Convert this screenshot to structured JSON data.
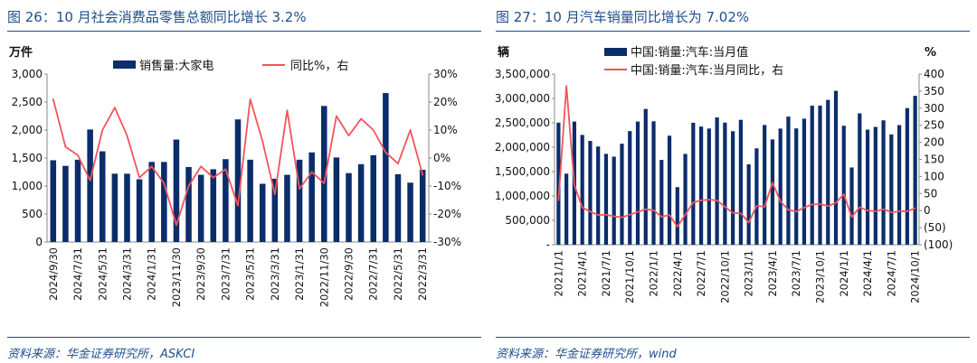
{
  "colors": {
    "title": "#1f4e8c",
    "bar": "#0b2d6b",
    "line": "#f2545b"
  },
  "chart_data": [
    {
      "type": "bar",
      "figure_title": "图 26：10 月社会消费品零售总额同比增长 3.2%",
      "source": "资料来源：华金证券研究所，ASKCI",
      "ylabel": "万件",
      "ylim": [
        0,
        3000
      ],
      "yticks": [
        "0",
        "500",
        "1,000",
        "1,500",
        "2,000",
        "2,500",
        "3,000"
      ],
      "y2lim": [
        -30,
        30
      ],
      "y2ticks": [
        "-30%",
        "-20%",
        "-10%",
        "0%",
        "10%",
        "20%",
        "30%"
      ],
      "legend": {
        "bar": "销售量:大家电",
        "line": "同比%，右"
      },
      "xtick_labels": [
        "2024/9/30",
        "2024/7/31",
        "2024/5/31",
        "2024/3/31",
        "2024/1/31",
        "2023/11/30",
        "2023/9/30",
        "2023/7/31",
        "2023/5/31",
        "2023/3/31",
        "2023/1/31",
        "2022/11/30",
        "2022/9/30",
        "2022/7/31",
        "2022/5/31",
        "2022/3/31"
      ],
      "series": [
        {
          "name": "销售量:大家电",
          "kind": "bar",
          "axis": "left",
          "values": [
            1460,
            1360,
            1470,
            2010,
            1620,
            1220,
            1220,
            1120,
            1430,
            1430,
            1830,
            1340,
            1200,
            1300,
            1480,
            2190,
            1470,
            1040,
            1130,
            1200,
            1470,
            1600,
            2430,
            1510,
            1230,
            1390,
            1550,
            2660,
            1210,
            1060,
            1290
          ]
        },
        {
          "name": "同比%，右",
          "kind": "line",
          "axis": "right",
          "values": [
            21,
            4,
            1,
            -8,
            10,
            18,
            8,
            -7,
            -3,
            -9,
            -24,
            -10,
            -3,
            -7,
            -4,
            -17,
            21,
            6,
            -13,
            17,
            -11,
            -5,
            -9,
            15,
            8,
            14,
            10,
            2,
            -2,
            10,
            -6
          ]
        }
      ]
    },
    {
      "type": "bar",
      "figure_title": "图 27：10 月汽车销量同比增长为 7.02%",
      "source": "资料来源：华金证券研究所，wind",
      "ylabel": "辆",
      "y2label": "%",
      "ylim": [
        0,
        3500000
      ],
      "yticks": [
        "-",
        "500,000",
        "1,000,000",
        "1,500,000",
        "2,000,000",
        "2,500,000",
        "3,000,000",
        "3,500,000"
      ],
      "y2lim": [
        -100,
        400
      ],
      "y2ticks": [
        "(100)",
        "(50)",
        "0",
        "50",
        "100",
        "150",
        "200",
        "250",
        "300",
        "350",
        "400"
      ],
      "legend": {
        "bar": "中国:销量:汽车:当月值",
        "line": "中国:销量:汽车:当月同比，右"
      },
      "xtick_labels": [
        "2021/1/1",
        "2021/4/1",
        "2021/7/1",
        "2021/10/1",
        "2022/1/1",
        "2022/4/1",
        "2022/7/1",
        "2022/10/1",
        "2023/1/1",
        "2023/4/1",
        "2023/7/1",
        "2023/10/1",
        "2024/1/1",
        "2024/4/1",
        "2024/7/1",
        "2024/10/1"
      ],
      "series": [
        {
          "name": "中国:销量:汽车:当月值",
          "kind": "bar",
          "axis": "left",
          "values": [
            2503000,
            1457000,
            2526000,
            2252000,
            2128000,
            2015000,
            1863000,
            1806000,
            2071000,
            2330000,
            2526000,
            2785000,
            2531000,
            1739000,
            2235000,
            1181000,
            1862000,
            2501000,
            2423000,
            2383000,
            2610000,
            2504000,
            2327000,
            2561000,
            1649000,
            1976000,
            2455000,
            2159000,
            2382000,
            2627000,
            2385000,
            2585000,
            2852000,
            2853000,
            2970000,
            3156000,
            2439000,
            1584000,
            2694000,
            2360000,
            2416000,
            2551000,
            2262000,
            2453000,
            2801000,
            3053000
          ]
        },
        {
          "name": "中国:销量:汽车:当月同比，右",
          "kind": "line",
          "axis": "right",
          "values": [
            30,
            365,
            75,
            9,
            -3,
            -13,
            -12,
            -17,
            -20,
            -12,
            -4,
            4,
            1,
            -18,
            -13,
            -47,
            -12,
            24,
            30,
            32,
            30,
            11,
            -7,
            -8,
            -35,
            14,
            11,
            82,
            27,
            2,
            -3,
            9,
            18,
            19,
            13,
            23,
            48,
            -19,
            10,
            0,
            -2,
            4,
            -5,
            -2,
            -2,
            7
          ]
        }
      ]
    }
  ]
}
